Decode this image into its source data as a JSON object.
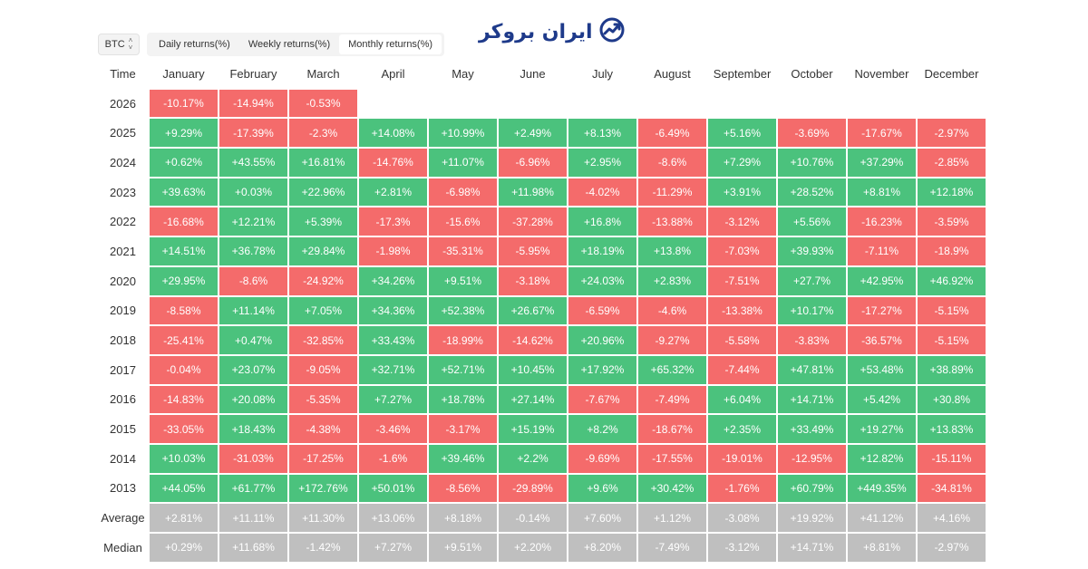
{
  "brand": {
    "name": "ایران بروکر"
  },
  "asset": {
    "selected": "BTC"
  },
  "tabs": [
    {
      "label": "Daily returns(%)",
      "active": false
    },
    {
      "label": "Weekly returns(%)",
      "active": false
    },
    {
      "label": "Monthly returns(%)",
      "active": true
    }
  ],
  "colors": {
    "positive": "#4bc27d",
    "negative": "#f46b6b",
    "summary": "#bfbfbf",
    "brand": "#1e3a8a"
  },
  "table": {
    "corner_label": "Time",
    "months": [
      "January",
      "February",
      "March",
      "April",
      "May",
      "June",
      "July",
      "August",
      "September",
      "October",
      "November",
      "December"
    ],
    "rows": [
      {
        "label": "2026",
        "values": [
          "-10.17%",
          "-14.94%",
          "-0.53%"
        ]
      },
      {
        "label": "2025",
        "values": [
          "+9.29%",
          "-17.39%",
          "-2.3%",
          "+14.08%",
          "+10.99%",
          "+2.49%",
          "+8.13%",
          "-6.49%",
          "+5.16%",
          "-3.69%",
          "-17.67%",
          "-2.97%"
        ]
      },
      {
        "label": "2024",
        "values": [
          "+0.62%",
          "+43.55%",
          "+16.81%",
          "-14.76%",
          "+11.07%",
          "-6.96%",
          "+2.95%",
          "-8.6%",
          "+7.29%",
          "+10.76%",
          "+37.29%",
          "-2.85%"
        ]
      },
      {
        "label": "2023",
        "values": [
          "+39.63%",
          "+0.03%",
          "+22.96%",
          "+2.81%",
          "-6.98%",
          "+11.98%",
          "-4.02%",
          "-11.29%",
          "+3.91%",
          "+28.52%",
          "+8.81%",
          "+12.18%"
        ]
      },
      {
        "label": "2022",
        "values": [
          "-16.68%",
          "+12.21%",
          "+5.39%",
          "-17.3%",
          "-15.6%",
          "-37.28%",
          "+16.8%",
          "-13.88%",
          "-3.12%",
          "+5.56%",
          "-16.23%",
          "-3.59%"
        ]
      },
      {
        "label": "2021",
        "values": [
          "+14.51%",
          "+36.78%",
          "+29.84%",
          "-1.98%",
          "-35.31%",
          "-5.95%",
          "+18.19%",
          "+13.8%",
          "-7.03%",
          "+39.93%",
          "-7.11%",
          "-18.9%"
        ]
      },
      {
        "label": "2020",
        "values": [
          "+29.95%",
          "-8.6%",
          "-24.92%",
          "+34.26%",
          "+9.51%",
          "-3.18%",
          "+24.03%",
          "+2.83%",
          "-7.51%",
          "+27.7%",
          "+42.95%",
          "+46.92%"
        ]
      },
      {
        "label": "2019",
        "values": [
          "-8.58%",
          "+11.14%",
          "+7.05%",
          "+34.36%",
          "+52.38%",
          "+26.67%",
          "-6.59%",
          "-4.6%",
          "-13.38%",
          "+10.17%",
          "-17.27%",
          "-5.15%"
        ]
      },
      {
        "label": "2018",
        "values": [
          "-25.41%",
          "+0.47%",
          "-32.85%",
          "+33.43%",
          "-18.99%",
          "-14.62%",
          "+20.96%",
          "-9.27%",
          "-5.58%",
          "-3.83%",
          "-36.57%",
          "-5.15%"
        ]
      },
      {
        "label": "2017",
        "values": [
          "-0.04%",
          "+23.07%",
          "-9.05%",
          "+32.71%",
          "+52.71%",
          "+10.45%",
          "+17.92%",
          "+65.32%",
          "-7.44%",
          "+47.81%",
          "+53.48%",
          "+38.89%"
        ]
      },
      {
        "label": "2016",
        "values": [
          "-14.83%",
          "+20.08%",
          "-5.35%",
          "+7.27%",
          "+18.78%",
          "+27.14%",
          "-7.67%",
          "-7.49%",
          "+6.04%",
          "+14.71%",
          "+5.42%",
          "+30.8%"
        ]
      },
      {
        "label": "2015",
        "values": [
          "-33.05%",
          "+18.43%",
          "-4.38%",
          "-3.46%",
          "-3.17%",
          "+15.19%",
          "+8.2%",
          "-18.67%",
          "+2.35%",
          "+33.49%",
          "+19.27%",
          "+13.83%"
        ]
      },
      {
        "label": "2014",
        "values": [
          "+10.03%",
          "-31.03%",
          "-17.25%",
          "-1.6%",
          "+39.46%",
          "+2.2%",
          "-9.69%",
          "-17.55%",
          "-19.01%",
          "-12.95%",
          "+12.82%",
          "-15.11%"
        ]
      },
      {
        "label": "2013",
        "values": [
          "+44.05%",
          "+61.77%",
          "+172.76%",
          "+50.01%",
          "-8.56%",
          "-29.89%",
          "+9.6%",
          "+30.42%",
          "-1.76%",
          "+60.79%",
          "+449.35%",
          "-34.81%"
        ]
      }
    ],
    "summary_rows": [
      {
        "label": "Average",
        "values": [
          "+2.81%",
          "+11.11%",
          "+11.30%",
          "+13.06%",
          "+8.18%",
          "-0.14%",
          "+7.60%",
          "+1.12%",
          "-3.08%",
          "+19.92%",
          "+41.12%",
          "+4.16%"
        ]
      },
      {
        "label": "Median",
        "values": [
          "+0.29%",
          "+11.68%",
          "-1.42%",
          "+7.27%",
          "+9.51%",
          "+2.20%",
          "+8.20%",
          "-7.49%",
          "-3.12%",
          "+14.71%",
          "+8.81%",
          "-2.97%"
        ]
      }
    ]
  }
}
